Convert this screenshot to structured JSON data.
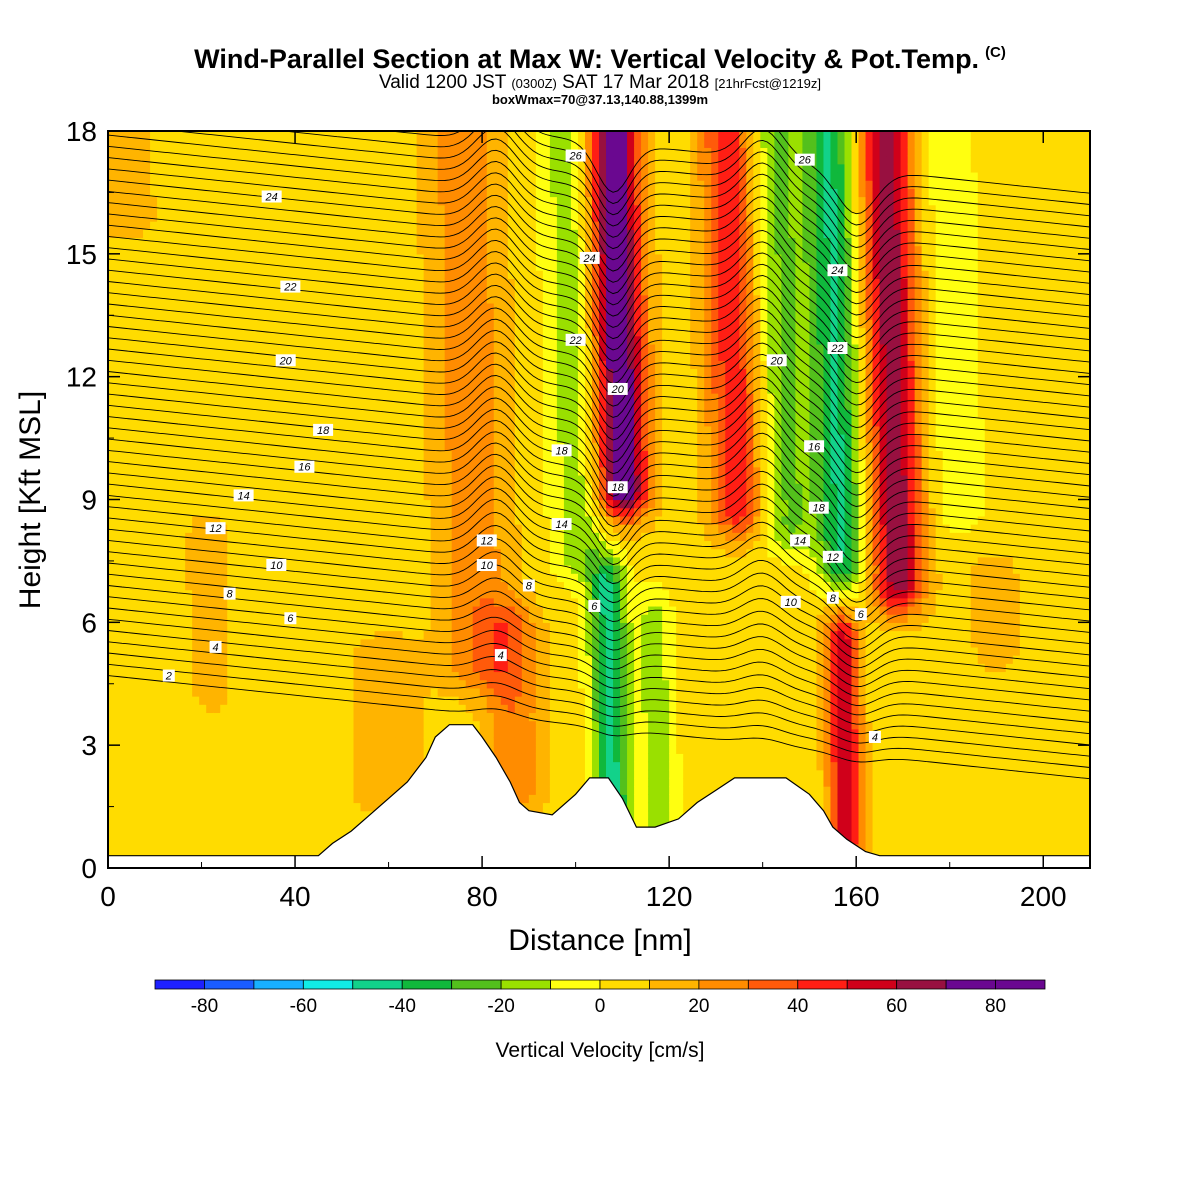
{
  "title": {
    "main": "Wind-Parallel Section at Max W: Vertical Velocity & Pot.Temp.",
    "tag": "(C)",
    "valid_a": "Valid 1200 JST",
    "valid_b": "(0300Z)",
    "valid_c": "SAT 17 Mar 2018",
    "valid_d": "[21hrFcst@1219z]",
    "box": "boxWmax=70@37.13,140.88,1399m"
  },
  "chart_data": {
    "type": "heatmap",
    "xlabel": "Distance [nm]",
    "ylabel": "Height [Kft MSL]",
    "xlim": [
      0,
      210
    ],
    "ylim": [
      0,
      18
    ],
    "xticks": [
      0,
      40,
      80,
      120,
      160,
      200
    ],
    "yticks": [
      0,
      3,
      6,
      9,
      12,
      15,
      18
    ],
    "colorbar": {
      "label": "Vertical Velocity [cm/s]",
      "bounds": [
        -90,
        -80,
        -70,
        -60,
        -50,
        -40,
        -30,
        -20,
        -10,
        0,
        10,
        20,
        30,
        40,
        50,
        60,
        70,
        80,
        90
      ],
      "tick_labels": [
        -80,
        -60,
        -40,
        -20,
        0,
        20,
        40,
        60,
        80
      ],
      "colors": [
        "#1e20ff",
        "#1a5cff",
        "#18b0ff",
        "#11ece6",
        "#12d28a",
        "#10b83c",
        "#53c01c",
        "#9ae000",
        "#ffff10",
        "#ffdc00",
        "#ffb400",
        "#ff8c00",
        "#ff5a0a",
        "#ff1e14",
        "#d0001a",
        "#981040",
        "#6a0890",
        "#6a0890"
      ]
    },
    "w_features": [
      {
        "x": 110,
        "y0": 9.3,
        "y1": 18.1,
        "w_peak": 80,
        "width": 5.5
      },
      {
        "x": 101,
        "y0": 7.8,
        "y1": 18.1,
        "w_peak": -22,
        "width": 6
      },
      {
        "x": 135,
        "y0": 8.8,
        "y1": 18.1,
        "w_peak": 45,
        "width": 6
      },
      {
        "x": 145,
        "y0": 8.5,
        "y1": 18.1,
        "w_peak": -28,
        "width": 7
      },
      {
        "x": 157,
        "y0": 7.5,
        "y1": 18.1,
        "w_peak": -45,
        "width": 5
      },
      {
        "x": 169,
        "y0": 7.0,
        "y1": 18.1,
        "w_peak": 62,
        "width": 5.5
      },
      {
        "x": 79,
        "y0": 5.0,
        "y1": 18.1,
        "w_peak": 22,
        "width": 8
      },
      {
        "x": 108,
        "y0": 1.5,
        "y1": 6.8,
        "w_peak": -48,
        "width": 4
      },
      {
        "x": 118,
        "y0": 1.0,
        "y1": 6.0,
        "w_peak": -20,
        "width": 4
      },
      {
        "x": 158,
        "y0": 1.0,
        "y1": 5.5,
        "w_peak": 55,
        "width": 3.5
      },
      {
        "x": 87,
        "y0": 2.0,
        "y1": 5.8,
        "w_peak": 24,
        "width": 6
      },
      {
        "x": 60,
        "y0": 2.0,
        "y1": 5.0,
        "w_peak": 12,
        "width": 8
      },
      {
        "x": 22,
        "y0": 4.5,
        "y1": 8.0,
        "w_peak": 10,
        "width": 5
      },
      {
        "x": 4,
        "y0": 16.0,
        "y1": 18.1,
        "w_peak": 10,
        "width": 7
      },
      {
        "x": 182,
        "y0": 9.0,
        "y1": 18.1,
        "w_peak": -15,
        "width": 5
      },
      {
        "x": 190,
        "y0": 5.5,
        "y1": 7.0,
        "w_peak": 10,
        "width": 6
      }
    ],
    "terrain_top": [
      [
        0,
        0.3
      ],
      [
        45,
        0.3
      ],
      [
        48,
        0.6
      ],
      [
        52,
        0.9
      ],
      [
        56,
        1.3
      ],
      [
        60,
        1.7
      ],
      [
        64,
        2.1
      ],
      [
        68,
        2.7
      ],
      [
        70,
        3.2
      ],
      [
        73,
        3.5
      ],
      [
        78,
        3.5
      ],
      [
        80,
        3.2
      ],
      [
        83,
        2.7
      ],
      [
        86,
        2.1
      ],
      [
        88,
        1.6
      ],
      [
        90,
        1.4
      ],
      [
        95,
        1.3
      ],
      [
        100,
        1.8
      ],
      [
        103,
        2.2
      ],
      [
        107,
        2.2
      ],
      [
        110,
        1.7
      ],
      [
        113,
        1.0
      ],
      [
        117,
        1.0
      ],
      [
        122,
        1.2
      ],
      [
        126,
        1.6
      ],
      [
        130,
        1.9
      ],
      [
        134,
        2.2
      ],
      [
        145,
        2.2
      ],
      [
        150,
        1.8
      ],
      [
        153,
        1.4
      ],
      [
        155,
        1.0
      ],
      [
        158,
        0.7
      ],
      [
        162,
        0.4
      ],
      [
        165,
        0.3
      ],
      [
        210,
        0.3
      ]
    ],
    "theta_labels": [
      {
        "text": "26",
        "x": 100,
        "y": 17.4
      },
      {
        "text": "26",
        "x": 149,
        "y": 17.3
      },
      {
        "text": "24",
        "x": 35,
        "y": 16.4
      },
      {
        "text": "24",
        "x": 103,
        "y": 14.9
      },
      {
        "text": "24",
        "x": 156,
        "y": 14.6
      },
      {
        "text": "22",
        "x": 39,
        "y": 14.2
      },
      {
        "text": "22",
        "x": 100,
        "y": 12.9
      },
      {
        "text": "22",
        "x": 156,
        "y": 12.7
      },
      {
        "text": "20",
        "x": 38,
        "y": 12.4
      },
      {
        "text": "20",
        "x": 109,
        "y": 11.7
      },
      {
        "text": "20",
        "x": 143,
        "y": 12.4
      },
      {
        "text": "18",
        "x": 46,
        "y": 10.7
      },
      {
        "text": "18",
        "x": 97,
        "y": 10.2
      },
      {
        "text": "18",
        "x": 109,
        "y": 9.3
      },
      {
        "text": "18",
        "x": 152,
        "y": 8.8
      },
      {
        "text": "16",
        "x": 42,
        "y": 9.8
      },
      {
        "text": "16",
        "x": 151,
        "y": 10.3
      },
      {
        "text": "14",
        "x": 29,
        "y": 9.1
      },
      {
        "text": "14",
        "x": 97,
        "y": 8.4
      },
      {
        "text": "14",
        "x": 148,
        "y": 8.0
      },
      {
        "text": "12",
        "x": 23,
        "y": 8.3
      },
      {
        "text": "12",
        "x": 81,
        "y": 8.0
      },
      {
        "text": "12",
        "x": 155,
        "y": 7.6
      },
      {
        "text": "10",
        "x": 36,
        "y": 7.4
      },
      {
        "text": "10",
        "x": 81,
        "y": 7.4
      },
      {
        "text": "10",
        "x": 146,
        "y": 6.5
      },
      {
        "text": "8",
        "x": 26,
        "y": 6.7
      },
      {
        "text": "8",
        "x": 90,
        "y": 6.9
      },
      {
        "text": "8",
        "x": 155,
        "y": 6.6
      },
      {
        "text": "6",
        "x": 39,
        "y": 6.1
      },
      {
        "text": "6",
        "x": 104,
        "y": 6.4
      },
      {
        "text": "6",
        "x": 161,
        "y": 6.2
      },
      {
        "text": "4",
        "x": 23,
        "y": 5.4
      },
      {
        "text": "4",
        "x": 84,
        "y": 5.2
      },
      {
        "text": "4",
        "x": 164,
        "y": 3.2
      },
      {
        "text": "2",
        "x": 13,
        "y": 4.7
      }
    ]
  }
}
